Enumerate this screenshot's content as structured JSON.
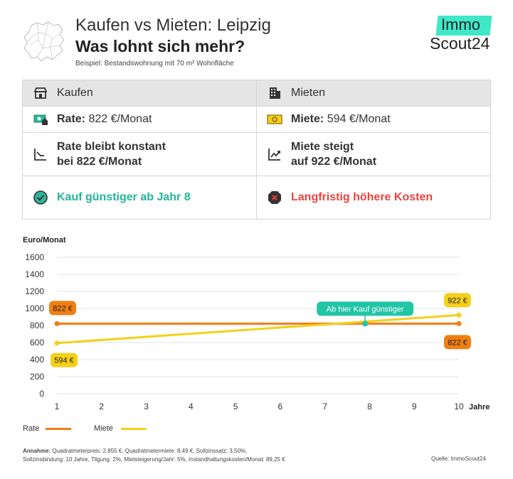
{
  "header": {
    "title_line1": "Kaufen vs Mieten: Leipzig",
    "title_line2": "Was lohnt sich mehr?",
    "subtitle": "Beispiel: Bestandswohnung mit 70 m² Wohnfläche",
    "logo_top": "Immo",
    "logo_bottom": "Scout24"
  },
  "table": {
    "buy": {
      "heading": "Kaufen",
      "rate_label": "Rate:",
      "rate_value": "822 €/Monat",
      "trend_line1": "Rate bleibt konstant",
      "trend_line2": "bei 822 €/Monat",
      "verdict": "Kauf günstiger ab Jahr 8"
    },
    "rent": {
      "heading": "Mieten",
      "rent_label": "Miete:",
      "rent_value": "594 €/Monat",
      "trend_line1": "Miete steigt",
      "trend_line2": "auf 922 €/Monat",
      "verdict": "Langfristig höhere Kosten"
    }
  },
  "chart_data": {
    "type": "line",
    "ylabel": "Euro/Monat",
    "xlabel": "Jahre",
    "xlim": [
      1,
      10
    ],
    "ylim": [
      0,
      1600
    ],
    "xticks": [
      "1",
      "2",
      "3",
      "4",
      "5",
      "6",
      "7",
      "8",
      "9",
      "10"
    ],
    "yticks": [
      "0",
      "200",
      "400",
      "600",
      "800",
      "1000",
      "1200",
      "1400",
      "1600"
    ],
    "grid": true,
    "series": [
      {
        "name": "Rate",
        "color": "#f07f12",
        "x": [
          1,
          10
        ],
        "y": [
          822,
          822
        ]
      },
      {
        "name": "Miete",
        "color": "#f5cf19",
        "x": [
          1,
          10
        ],
        "y": [
          594,
          922
        ]
      }
    ],
    "annotations": {
      "rate_start": "822 €",
      "rate_end": "822 €",
      "rent_start": "594 €",
      "rent_end": "922 €",
      "crossover": "Ab hier Kauf günstiger",
      "crossover_x": 7.9,
      "crossover_y": 822
    },
    "legend": [
      "Rate",
      "Miete"
    ],
    "legend_position": "bottom-left"
  },
  "footer": {
    "note_label": "Annahme:",
    "note_line1": " Quadratmeterpreis: 2.855 €, Quadratmetermiete: 8,49 €,  Sollzinssatz: 3,50%,",
    "note_line2": "Sollzinsbindung: 10 Jahre, Tilgung: 2%, Mietsteigerung/Jahr: 5%, Instandhaltungskosten/Monat: 89,25 €",
    "source": "Quelle: ImmoScout24"
  }
}
